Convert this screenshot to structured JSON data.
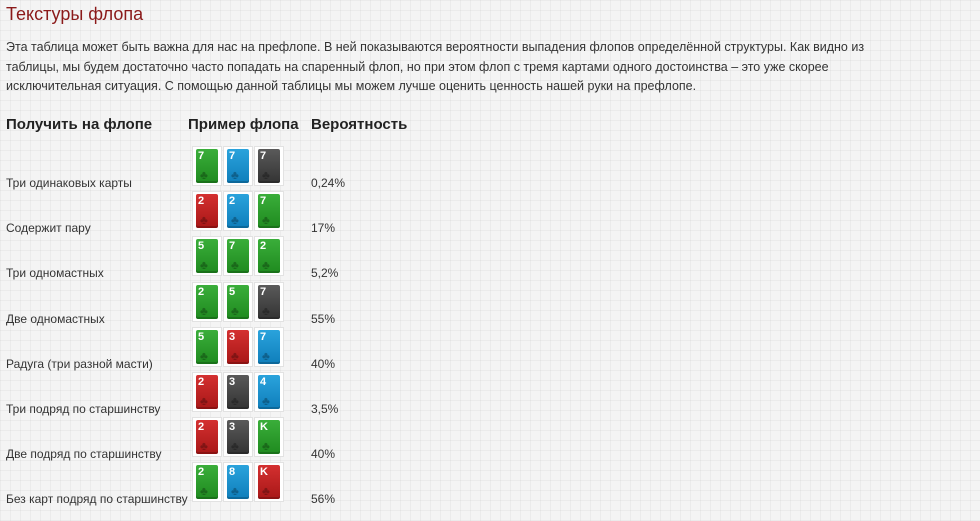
{
  "title": "Текстуры флопа",
  "intro": "Эта таблица может быть важна для нас на префлопе. В ней показываются вероятности выпадения флопов определённой структуры. Как видно из таблицы, мы будем достаточно часто попадать на спаренный флоп, но при этом флоп с тремя картами одного достоинства – это уже скорее исключительная ситуация. С помощью данной таблицы мы можем лучше оценить ценность нашей руки на префлопе.",
  "table": {
    "headers": {
      "col1": "Получить на флопе",
      "col2": "Пример флопа",
      "col3": "Вероятность"
    },
    "rows": [
      {
        "label": "Три одинаковых карты",
        "cards": [
          {
            "rank": "7",
            "suit": "green"
          },
          {
            "rank": "7",
            "suit": "blue"
          },
          {
            "rank": "7",
            "suit": "gray"
          }
        ],
        "prob": "0,24%"
      },
      {
        "label": "Содержит пару",
        "cards": [
          {
            "rank": "2",
            "suit": "red"
          },
          {
            "rank": "2",
            "suit": "blue"
          },
          {
            "rank": "7",
            "suit": "green"
          }
        ],
        "prob": "17%"
      },
      {
        "label": "Три одномастных",
        "cards": [
          {
            "rank": "5",
            "suit": "green"
          },
          {
            "rank": "7",
            "suit": "green"
          },
          {
            "rank": "2",
            "suit": "green"
          }
        ],
        "prob": "5,2%"
      },
      {
        "label": "Две одномастных",
        "cards": [
          {
            "rank": "2",
            "suit": "green"
          },
          {
            "rank": "5",
            "suit": "green"
          },
          {
            "rank": "7",
            "suit": "gray"
          }
        ],
        "prob": "55%"
      },
      {
        "label": "Радуга (три разной масти)",
        "cards": [
          {
            "rank": "5",
            "suit": "green"
          },
          {
            "rank": "3",
            "suit": "red"
          },
          {
            "rank": "7",
            "suit": "blue"
          }
        ],
        "prob": "40%"
      },
      {
        "label": "Три подряд по старшинству",
        "cards": [
          {
            "rank": "2",
            "suit": "red"
          },
          {
            "rank": "3",
            "suit": "gray"
          },
          {
            "rank": "4",
            "suit": "blue"
          }
        ],
        "prob": "3,5%"
      },
      {
        "label": "Две подряд по старшинству",
        "cards": [
          {
            "rank": "2",
            "suit": "red"
          },
          {
            "rank": "3",
            "suit": "gray"
          },
          {
            "rank": "K",
            "suit": "green"
          }
        ],
        "prob": "40%"
      },
      {
        "label": "Без карт подряд по старшинству",
        "cards": [
          {
            "rank": "2",
            "suit": "green"
          },
          {
            "rank": "8",
            "suit": "blue"
          },
          {
            "rank": "K",
            "suit": "red"
          }
        ],
        "prob": "56%"
      }
    ]
  },
  "colors": {
    "title": "#8b1a1a",
    "green": "#2a9d2a",
    "blue": "#1a90cc",
    "gray": "#444444",
    "red": "#c02020"
  },
  "icons": {
    "suit_pip": "club-icon"
  }
}
